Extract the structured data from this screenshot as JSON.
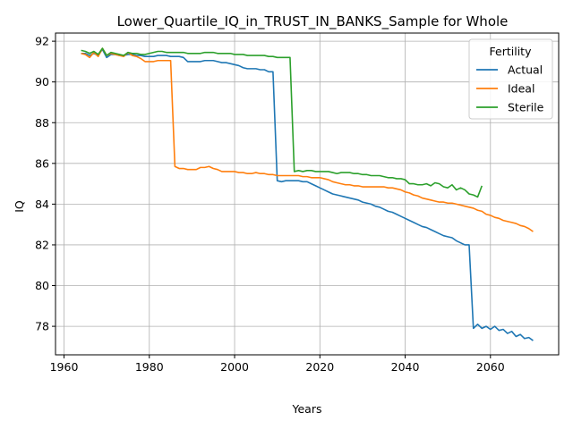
{
  "chart_data": {
    "type": "line",
    "title": "Lower_Quartile_IQ_in_TRUST_IN_BANKS_Sample for Whole",
    "xlabel": "Years",
    "ylabel": "IQ",
    "xlim": [
      1958,
      2076
    ],
    "ylim": [
      76.6,
      92.4
    ],
    "xticks": [
      1960,
      1980,
      2000,
      2020,
      2040,
      2060
    ],
    "yticks": [
      78,
      80,
      82,
      84,
      86,
      88,
      90,
      92
    ],
    "grid": true,
    "legend": {
      "title": "Fertility",
      "position": "top-right"
    },
    "series": [
      {
        "name": "Actual",
        "color": "#1f77b4",
        "points": [
          [
            1964,
            91.4
          ],
          [
            1965,
            91.4
          ],
          [
            1966,
            91.3
          ],
          [
            1967,
            91.4
          ],
          [
            1968,
            91.3
          ],
          [
            1969,
            91.6
          ],
          [
            1970,
            91.2
          ],
          [
            1971,
            91.35
          ],
          [
            1972,
            91.35
          ],
          [
            1973,
            91.3
          ],
          [
            1974,
            91.3
          ],
          [
            1975,
            91.35
          ],
          [
            1976,
            91.35
          ],
          [
            1977,
            91.3
          ],
          [
            1978,
            91.3
          ],
          [
            1979,
            91.25
          ],
          [
            1980,
            91.25
          ],
          [
            1981,
            91.25
          ],
          [
            1982,
            91.3
          ],
          [
            1983,
            91.3
          ],
          [
            1984,
            91.3
          ],
          [
            1985,
            91.25
          ],
          [
            1986,
            91.25
          ],
          [
            1987,
            91.25
          ],
          [
            1988,
            91.2
          ],
          [
            1989,
            91.0
          ],
          [
            1990,
            91.0
          ],
          [
            1991,
            91.0
          ],
          [
            1992,
            91.0
          ],
          [
            1993,
            91.05
          ],
          [
            1994,
            91.05
          ],
          [
            1995,
            91.05
          ],
          [
            1996,
            91.0
          ],
          [
            1997,
            90.95
          ],
          [
            1998,
            90.95
          ],
          [
            1999,
            90.9
          ],
          [
            2000,
            90.85
          ],
          [
            2001,
            90.8
          ],
          [
            2002,
            90.7
          ],
          [
            2003,
            90.65
          ],
          [
            2004,
            90.65
          ],
          [
            2005,
            90.65
          ],
          [
            2006,
            90.6
          ],
          [
            2007,
            90.6
          ],
          [
            2008,
            90.5
          ],
          [
            2009,
            90.5
          ],
          [
            2010,
            85.15
          ],
          [
            2011,
            85.1
          ],
          [
            2012,
            85.15
          ],
          [
            2013,
            85.15
          ],
          [
            2014,
            85.15
          ],
          [
            2015,
            85.15
          ],
          [
            2016,
            85.1
          ],
          [
            2017,
            85.1
          ],
          [
            2018,
            85.0
          ],
          [
            2019,
            84.9
          ],
          [
            2020,
            84.8
          ],
          [
            2021,
            84.7
          ],
          [
            2022,
            84.6
          ],
          [
            2023,
            84.5
          ],
          [
            2024,
            84.45
          ],
          [
            2025,
            84.4
          ],
          [
            2026,
            84.35
          ],
          [
            2027,
            84.3
          ],
          [
            2028,
            84.25
          ],
          [
            2029,
            84.2
          ],
          [
            2030,
            84.1
          ],
          [
            2031,
            84.05
          ],
          [
            2032,
            84.0
          ],
          [
            2033,
            83.9
          ],
          [
            2034,
            83.85
          ],
          [
            2035,
            83.75
          ],
          [
            2036,
            83.65
          ],
          [
            2037,
            83.6
          ],
          [
            2038,
            83.5
          ],
          [
            2039,
            83.4
          ],
          [
            2040,
            83.3
          ],
          [
            2041,
            83.2
          ],
          [
            2042,
            83.1
          ],
          [
            2043,
            83.0
          ],
          [
            2044,
            82.9
          ],
          [
            2045,
            82.85
          ],
          [
            2046,
            82.75
          ],
          [
            2047,
            82.65
          ],
          [
            2048,
            82.55
          ],
          [
            2049,
            82.45
          ],
          [
            2050,
            82.4
          ],
          [
            2051,
            82.35
          ],
          [
            2052,
            82.2
          ],
          [
            2053,
            82.1
          ],
          [
            2054,
            82.0
          ],
          [
            2055,
            82.0
          ],
          [
            2056,
            77.9
          ],
          [
            2057,
            78.1
          ],
          [
            2058,
            77.9
          ],
          [
            2059,
            78.0
          ],
          [
            2060,
            77.85
          ],
          [
            2061,
            78.0
          ],
          [
            2062,
            77.8
          ],
          [
            2063,
            77.85
          ],
          [
            2064,
            77.65
          ],
          [
            2065,
            77.75
          ],
          [
            2066,
            77.5
          ],
          [
            2067,
            77.6
          ],
          [
            2068,
            77.4
          ],
          [
            2069,
            77.45
          ],
          [
            2070,
            77.3
          ]
        ]
      },
      {
        "name": "Ideal",
        "color": "#ff7f0e",
        "points": [
          [
            1964,
            91.4
          ],
          [
            1965,
            91.35
          ],
          [
            1966,
            91.2
          ],
          [
            1967,
            91.45
          ],
          [
            1968,
            91.25
          ],
          [
            1969,
            91.65
          ],
          [
            1970,
            91.3
          ],
          [
            1971,
            91.4
          ],
          [
            1972,
            91.35
          ],
          [
            1973,
            91.3
          ],
          [
            1974,
            91.25
          ],
          [
            1975,
            91.45
          ],
          [
            1976,
            91.3
          ],
          [
            1977,
            91.25
          ],
          [
            1978,
            91.15
          ],
          [
            1979,
            91.0
          ],
          [
            1980,
            91.0
          ],
          [
            1981,
            91.0
          ],
          [
            1982,
            91.05
          ],
          [
            1983,
            91.05
          ],
          [
            1984,
            91.05
          ],
          [
            1985,
            91.05
          ],
          [
            1986,
            85.85
          ],
          [
            1987,
            85.75
          ],
          [
            1988,
            85.75
          ],
          [
            1989,
            85.7
          ],
          [
            1990,
            85.7
          ],
          [
            1991,
            85.7
          ],
          [
            1992,
            85.8
          ],
          [
            1993,
            85.8
          ],
          [
            1994,
            85.85
          ],
          [
            1995,
            85.75
          ],
          [
            1996,
            85.7
          ],
          [
            1997,
            85.6
          ],
          [
            1998,
            85.6
          ],
          [
            1999,
            85.6
          ],
          [
            2000,
            85.6
          ],
          [
            2001,
            85.55
          ],
          [
            2002,
            85.55
          ],
          [
            2003,
            85.5
          ],
          [
            2004,
            85.5
          ],
          [
            2005,
            85.55
          ],
          [
            2006,
            85.5
          ],
          [
            2007,
            85.5
          ],
          [
            2008,
            85.45
          ],
          [
            2009,
            85.45
          ],
          [
            2010,
            85.4
          ],
          [
            2011,
            85.4
          ],
          [
            2012,
            85.4
          ],
          [
            2013,
            85.4
          ],
          [
            2014,
            85.4
          ],
          [
            2015,
            85.4
          ],
          [
            2016,
            85.35
          ],
          [
            2017,
            85.35
          ],
          [
            2018,
            85.3
          ],
          [
            2019,
            85.3
          ],
          [
            2020,
            85.3
          ],
          [
            2021,
            85.25
          ],
          [
            2022,
            85.2
          ],
          [
            2023,
            85.1
          ],
          [
            2024,
            85.05
          ],
          [
            2025,
            85.0
          ],
          [
            2026,
            84.95
          ],
          [
            2027,
            84.95
          ],
          [
            2028,
            84.9
          ],
          [
            2029,
            84.9
          ],
          [
            2030,
            84.85
          ],
          [
            2031,
            84.85
          ],
          [
            2032,
            84.85
          ],
          [
            2033,
            84.85
          ],
          [
            2034,
            84.85
          ],
          [
            2035,
            84.85
          ],
          [
            2036,
            84.8
          ],
          [
            2037,
            84.8
          ],
          [
            2038,
            84.75
          ],
          [
            2039,
            84.7
          ],
          [
            2040,
            84.6
          ],
          [
            2041,
            84.55
          ],
          [
            2042,
            84.45
          ],
          [
            2043,
            84.4
          ],
          [
            2044,
            84.3
          ],
          [
            2045,
            84.25
          ],
          [
            2046,
            84.2
          ],
          [
            2047,
            84.15
          ],
          [
            2048,
            84.1
          ],
          [
            2049,
            84.1
          ],
          [
            2050,
            84.05
          ],
          [
            2051,
            84.05
          ],
          [
            2052,
            84.0
          ],
          [
            2053,
            83.95
          ],
          [
            2054,
            83.9
          ],
          [
            2055,
            83.85
          ],
          [
            2056,
            83.8
          ],
          [
            2057,
            83.7
          ],
          [
            2058,
            83.65
          ],
          [
            2059,
            83.5
          ],
          [
            2060,
            83.45
          ],
          [
            2061,
            83.35
          ],
          [
            2062,
            83.3
          ],
          [
            2063,
            83.2
          ],
          [
            2064,
            83.15
          ],
          [
            2065,
            83.1
          ],
          [
            2066,
            83.05
          ],
          [
            2067,
            82.95
          ],
          [
            2068,
            82.9
          ],
          [
            2069,
            82.8
          ],
          [
            2070,
            82.65
          ]
        ]
      },
      {
        "name": "Sterile",
        "color": "#2ca02c",
        "points": [
          [
            1964,
            91.55
          ],
          [
            1965,
            91.5
          ],
          [
            1966,
            91.4
          ],
          [
            1967,
            91.5
          ],
          [
            1968,
            91.35
          ],
          [
            1969,
            91.65
          ],
          [
            1970,
            91.3
          ],
          [
            1971,
            91.45
          ],
          [
            1972,
            91.4
          ],
          [
            1973,
            91.35
          ],
          [
            1974,
            91.3
          ],
          [
            1975,
            91.45
          ],
          [
            1976,
            91.4
          ],
          [
            1977,
            91.4
          ],
          [
            1978,
            91.35
          ],
          [
            1979,
            91.35
          ],
          [
            1980,
            91.4
          ],
          [
            1981,
            91.45
          ],
          [
            1982,
            91.5
          ],
          [
            1983,
            91.5
          ],
          [
            1984,
            91.45
          ],
          [
            1985,
            91.45
          ],
          [
            1986,
            91.45
          ],
          [
            1987,
            91.45
          ],
          [
            1988,
            91.45
          ],
          [
            1989,
            91.4
          ],
          [
            1990,
            91.4
          ],
          [
            1991,
            91.4
          ],
          [
            1992,
            91.4
          ],
          [
            1993,
            91.45
          ],
          [
            1994,
            91.45
          ],
          [
            1995,
            91.45
          ],
          [
            1996,
            91.4
          ],
          [
            1997,
            91.4
          ],
          [
            1998,
            91.4
          ],
          [
            1999,
            91.4
          ],
          [
            2000,
            91.35
          ],
          [
            2001,
            91.35
          ],
          [
            2002,
            91.35
          ],
          [
            2003,
            91.3
          ],
          [
            2004,
            91.3
          ],
          [
            2005,
            91.3
          ],
          [
            2006,
            91.3
          ],
          [
            2007,
            91.3
          ],
          [
            2008,
            91.25
          ],
          [
            2009,
            91.25
          ],
          [
            2010,
            91.2
          ],
          [
            2011,
            91.2
          ],
          [
            2012,
            91.2
          ],
          [
            2013,
            91.2
          ],
          [
            2014,
            85.6
          ],
          [
            2015,
            85.65
          ],
          [
            2016,
            85.6
          ],
          [
            2017,
            85.65
          ],
          [
            2018,
            85.65
          ],
          [
            2019,
            85.6
          ],
          [
            2020,
            85.6
          ],
          [
            2021,
            85.6
          ],
          [
            2022,
            85.6
          ],
          [
            2023,
            85.55
          ],
          [
            2024,
            85.5
          ],
          [
            2025,
            85.55
          ],
          [
            2026,
            85.55
          ],
          [
            2027,
            85.55
          ],
          [
            2028,
            85.5
          ],
          [
            2029,
            85.5
          ],
          [
            2030,
            85.45
          ],
          [
            2031,
            85.45
          ],
          [
            2032,
            85.4
          ],
          [
            2033,
            85.4
          ],
          [
            2034,
            85.4
          ],
          [
            2035,
            85.35
          ],
          [
            2036,
            85.3
          ],
          [
            2037,
            85.3
          ],
          [
            2038,
            85.25
          ],
          [
            2039,
            85.25
          ],
          [
            2040,
            85.2
          ],
          [
            2041,
            85.0
          ],
          [
            2042,
            85.0
          ],
          [
            2043,
            84.95
          ],
          [
            2044,
            84.95
          ],
          [
            2045,
            85.0
          ],
          [
            2046,
            84.9
          ],
          [
            2047,
            85.05
          ],
          [
            2048,
            85.0
          ],
          [
            2049,
            84.85
          ],
          [
            2050,
            84.8
          ],
          [
            2051,
            84.95
          ],
          [
            2052,
            84.7
          ],
          [
            2053,
            84.8
          ],
          [
            2054,
            84.7
          ],
          [
            2055,
            84.5
          ],
          [
            2056,
            84.45
          ],
          [
            2057,
            84.35
          ],
          [
            2058,
            84.9
          ]
        ]
      }
    ]
  }
}
